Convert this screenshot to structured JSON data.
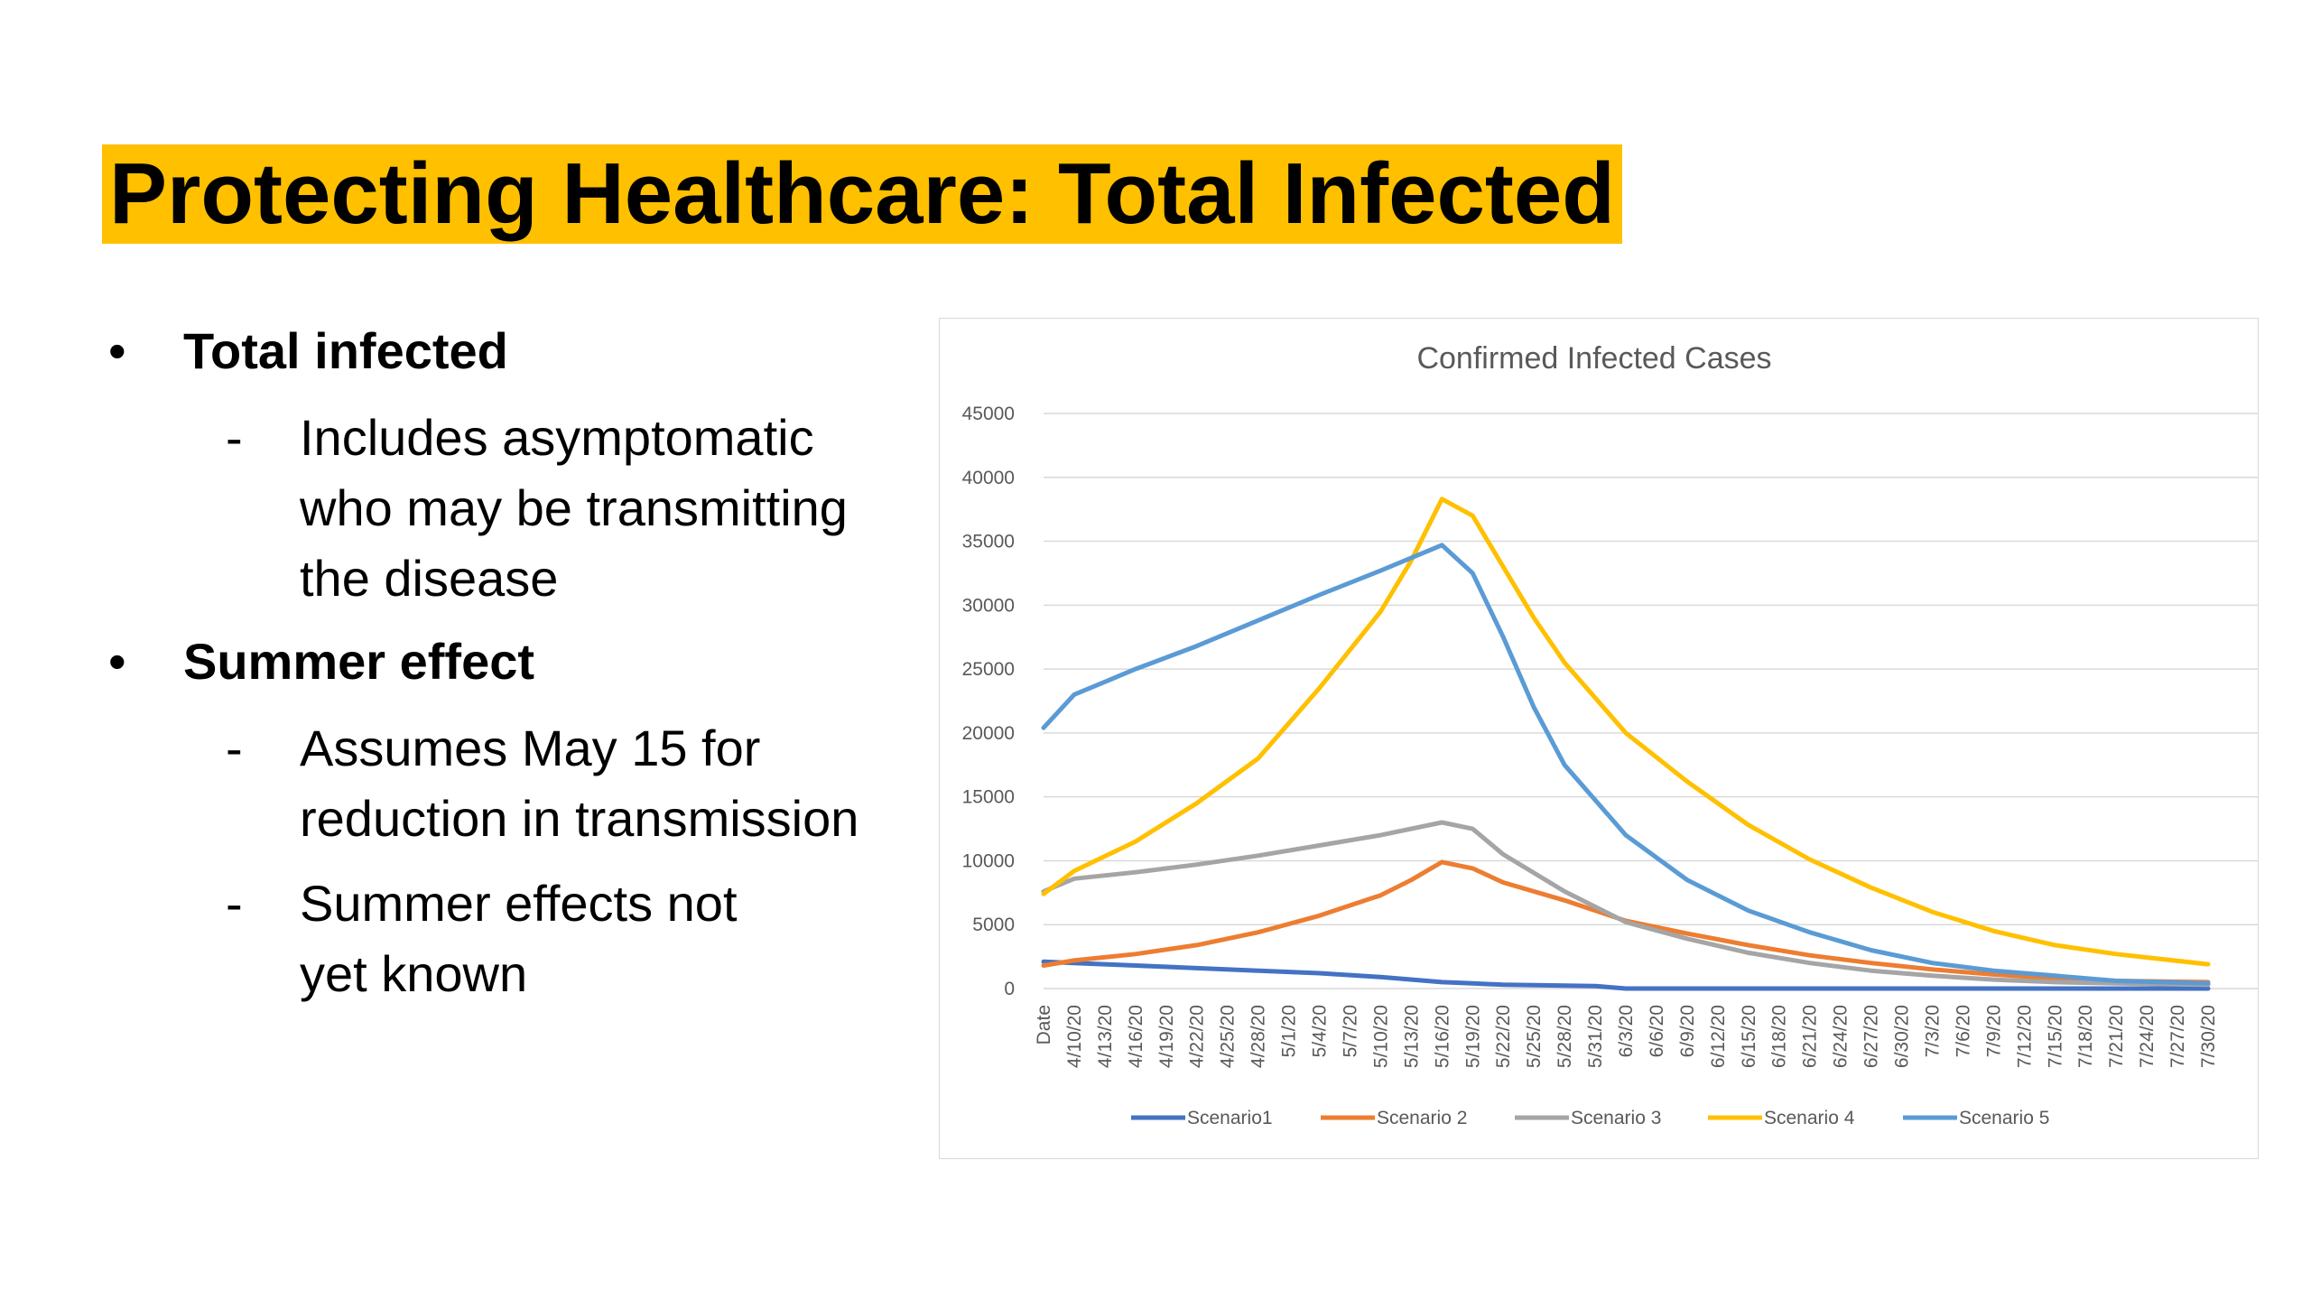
{
  "slide": {
    "title": "Protecting Healthcare: Total Infected",
    "bullets": [
      {
        "text": "Total infected",
        "subs": [
          "Includes asymptomatic",
          "who may be transmitting",
          "the disease"
        ]
      },
      {
        "text": "Summer effect",
        "subs": [
          "Assumes May 15 for",
          "reduction in transmission",
          "Summer effects not",
          "yet known"
        ]
      }
    ],
    "bullet_symbol": "•",
    "dash_symbol": "-"
  },
  "chart_data": {
    "type": "line",
    "title": "Confirmed Infected Cases",
    "xlabel": "",
    "ylabel": "",
    "ylim": [
      0,
      45000
    ],
    "yticks": [
      0,
      5000,
      10000,
      15000,
      20000,
      25000,
      30000,
      35000,
      40000,
      45000
    ],
    "x_tick_labels": [
      "Date",
      "4/10/20",
      "4/13/20",
      "4/16/20",
      "4/19/20",
      "4/22/20",
      "4/25/20",
      "4/28/20",
      "5/1/20",
      "5/4/20",
      "5/7/20",
      "5/10/20",
      "5/13/20",
      "5/16/20",
      "5/19/20",
      "5/22/20",
      "5/25/20",
      "5/28/20",
      "5/31/20",
      "6/3/20",
      "6/6/20",
      "6/9/20",
      "6/12/20",
      "6/15/20",
      "6/18/20",
      "6/21/20",
      "6/24/20",
      "6/27/20",
      "6/30/20",
      "7/3/20",
      "7/6/20",
      "7/9/20",
      "7/12/20",
      "7/15/20",
      "7/18/20",
      "7/21/20",
      "7/24/20",
      "7/27/20",
      "7/30/20"
    ],
    "grid": "horizontal",
    "legend_position": "bottom",
    "colors": {
      "Scenario1": "#4472c4",
      "Scenario 2": "#ed7d31",
      "Scenario 3": "#a5a5a5",
      "Scenario 4": "#ffc000",
      "Scenario 5": "#5b9bd5"
    },
    "series": [
      {
        "name": "Scenario1",
        "x": [
          "Date",
          "4/10/20",
          "4/16/20",
          "4/22/20",
          "4/28/20",
          "5/4/20",
          "5/10/20",
          "5/16/20",
          "5/19/20",
          "5/22/20",
          "5/31/20",
          "6/3/20",
          "7/30/20"
        ],
        "values": [
          2100,
          2000,
          1800,
          1600,
          1400,
          1200,
          900,
          500,
          400,
          300,
          200,
          0,
          0
        ]
      },
      {
        "name": "Scenario 2",
        "x": [
          "Date",
          "4/10/20",
          "4/16/20",
          "4/22/20",
          "4/28/20",
          "5/4/20",
          "5/10/20",
          "5/13/20",
          "5/16/20",
          "5/19/20",
          "5/22/20",
          "5/28/20",
          "6/3/20",
          "6/9/20",
          "6/15/20",
          "6/21/20",
          "6/27/20",
          "7/3/20",
          "7/9/20",
          "7/15/20",
          "7/21/20",
          "7/30/20"
        ],
        "values": [
          1800,
          2200,
          2700,
          3400,
          4400,
          5700,
          7300,
          8500,
          9900,
          9400,
          8300,
          6900,
          5300,
          4300,
          3400,
          2600,
          2000,
          1500,
          1100,
          800,
          600,
          500
        ]
      },
      {
        "name": "Scenario 3",
        "x": [
          "Date",
          "4/10/20",
          "4/16/20",
          "4/22/20",
          "4/28/20",
          "5/4/20",
          "5/10/20",
          "5/16/20",
          "5/19/20",
          "5/22/20",
          "5/28/20",
          "6/3/20",
          "6/9/20",
          "6/15/20",
          "6/21/20",
          "6/27/20",
          "7/3/20",
          "7/9/20",
          "7/15/20",
          "7/21/20",
          "7/30/20"
        ],
        "values": [
          7600,
          8600,
          9100,
          9700,
          10400,
          11200,
          12000,
          13000,
          12500,
          10500,
          7600,
          5200,
          3900,
          2800,
          2000,
          1400,
          1000,
          700,
          500,
          400,
          300
        ]
      },
      {
        "name": "Scenario 4",
        "x": [
          "Date",
          "4/10/20",
          "4/16/20",
          "4/22/20",
          "4/28/20",
          "5/4/20",
          "5/10/20",
          "5/13/20",
          "5/16/20",
          "5/19/20",
          "5/22/20",
          "5/25/20",
          "5/28/20",
          "6/3/20",
          "6/9/20",
          "6/15/20",
          "6/21/20",
          "6/27/20",
          "7/3/20",
          "7/9/20",
          "7/15/20",
          "7/21/20",
          "7/30/20"
        ],
        "values": [
          7400,
          9200,
          11500,
          14500,
          18000,
          23500,
          29500,
          33500,
          38300,
          37000,
          33000,
          29000,
          25500,
          20000,
          16200,
          12800,
          10100,
          7900,
          6000,
          4500,
          3400,
          2700,
          1900
        ]
      },
      {
        "name": "Scenario 5",
        "x": [
          "Date",
          "4/10/20",
          "4/13/20",
          "4/16/20",
          "4/22/20",
          "4/28/20",
          "5/4/20",
          "5/10/20",
          "5/16/20",
          "5/19/20",
          "5/22/20",
          "5/25/20",
          "5/28/20",
          "6/3/20",
          "6/9/20",
          "6/15/20",
          "6/21/20",
          "6/27/20",
          "7/3/20",
          "7/9/20",
          "7/15/20",
          "7/21/20",
          "7/30/20"
        ],
        "values": [
          20400,
          23000,
          24000,
          25000,
          26800,
          28800,
          30800,
          32700,
          34700,
          32500,
          27500,
          22000,
          17500,
          12000,
          8500,
          6100,
          4400,
          3000,
          2000,
          1400,
          1000,
          600,
          400
        ]
      }
    ]
  }
}
